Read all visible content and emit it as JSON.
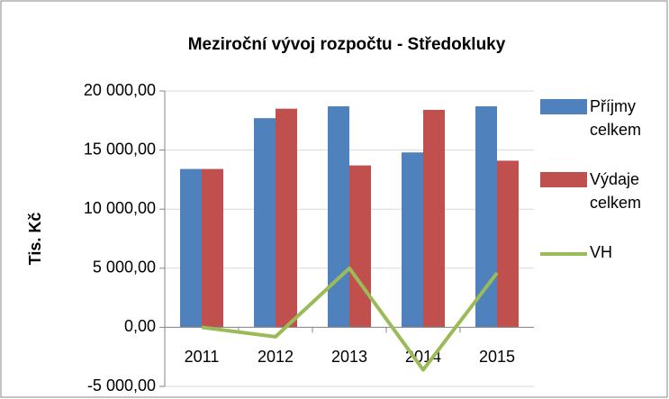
{
  "chart_data": {
    "type": "bar_line",
    "title": "Meziroční vývoj rozpočtu - Středokluky",
    "y_axis_label": "Tis. Kč",
    "categories": [
      "2011",
      "2012",
      "2013",
      "2014",
      "2015"
    ],
    "series": [
      {
        "name": "Příjmy celkem",
        "color": "#4f81bd",
        "type": "bar",
        "values": [
          13400,
          17700,
          18700,
          14800,
          18700
        ]
      },
      {
        "name": "Výdaje celkem",
        "color": "#c0504d",
        "type": "bar",
        "values": [
          13400,
          18500,
          13700,
          18400,
          14100
        ]
      },
      {
        "name": "VH",
        "color": "#9bbb59",
        "type": "line",
        "values": [
          0,
          -800,
          5000,
          -3600,
          4600
        ]
      }
    ],
    "ylim": [
      -5000,
      20000
    ],
    "yticks": [
      {
        "value": -5000,
        "label": "-5 000,00"
      },
      {
        "value": 0,
        "label": "0,00"
      },
      {
        "value": 5000,
        "label": "5 000,00"
      },
      {
        "value": 10000,
        "label": "10 000,00"
      },
      {
        "value": 15000,
        "label": "15 000,00"
      },
      {
        "value": 20000,
        "label": "20 000,00"
      }
    ],
    "legend": "right"
  }
}
